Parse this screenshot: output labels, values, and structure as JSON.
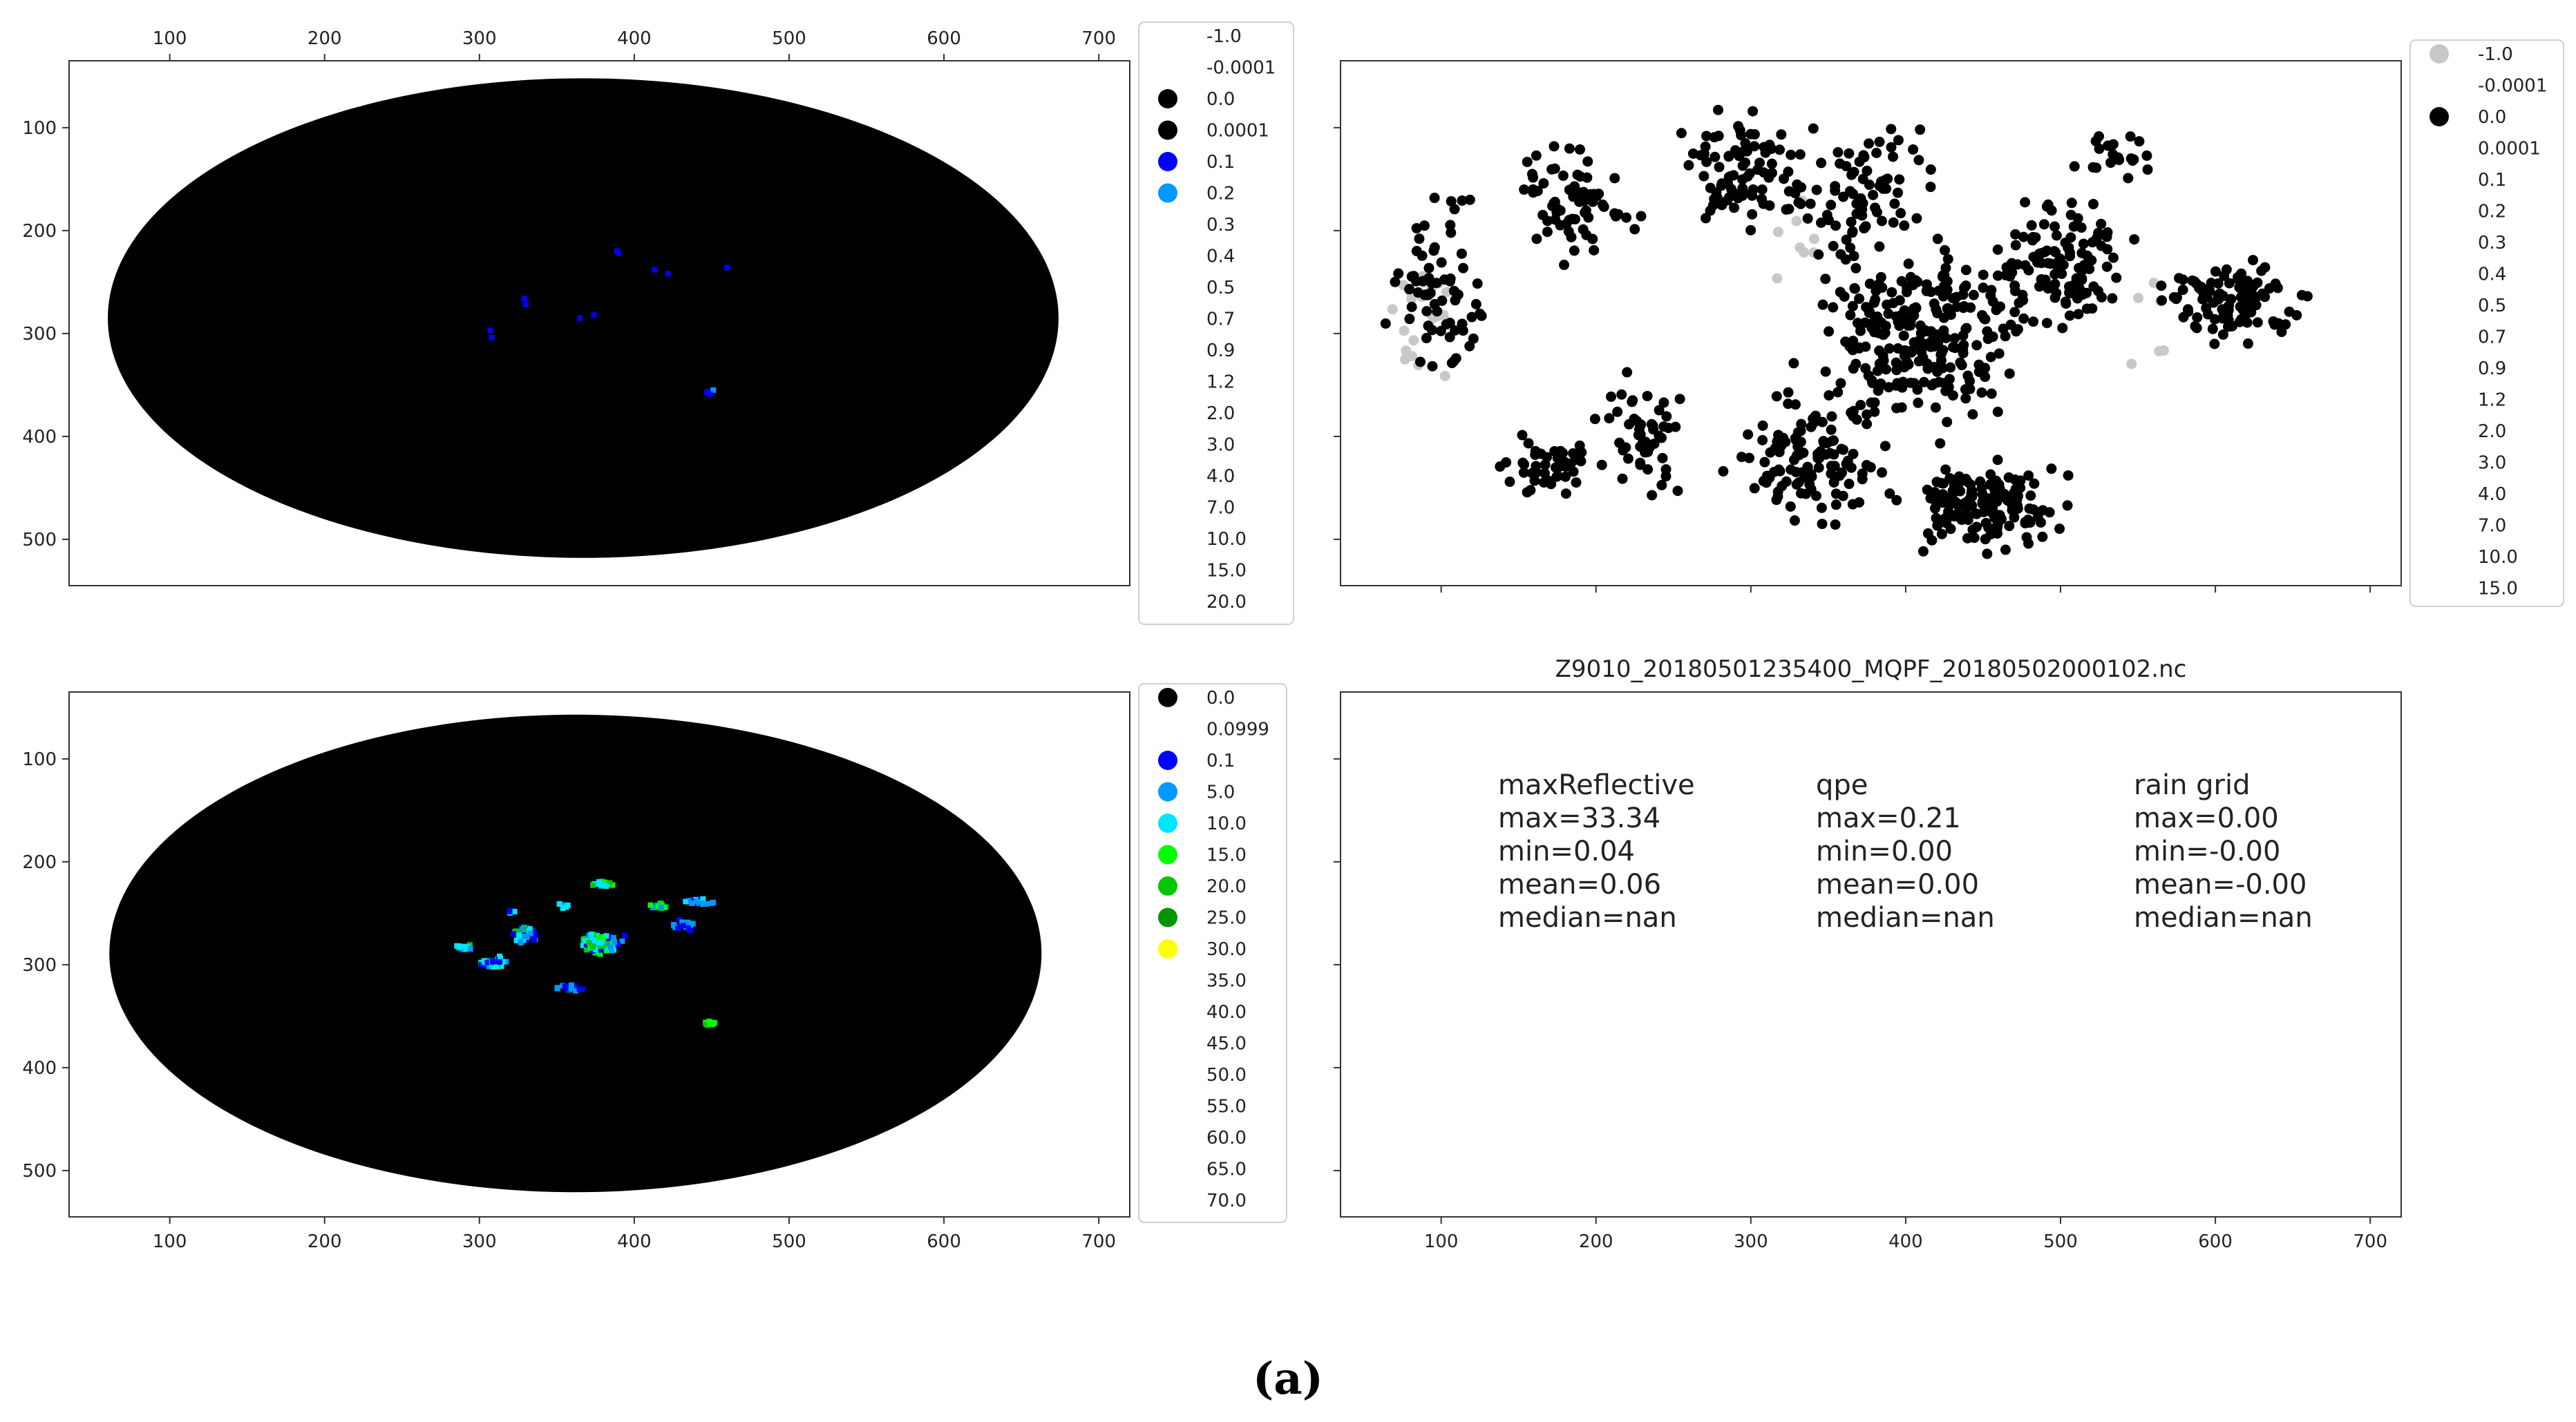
{
  "chart_data": [
    {
      "id": "maxReflective",
      "type": "heatmap",
      "x_ticks": [
        100,
        200,
        300,
        400,
        500,
        600,
        700
      ],
      "y_ticks": [
        100,
        200,
        300,
        400,
        500
      ],
      "xlim": [
        35,
        720
      ],
      "ylim": [
        545,
        35
      ],
      "x_axis_position": "top",
      "domain_ellipse": {
        "cx": 367,
        "cy": 285,
        "rx": 307,
        "ry": 233,
        "fill": "#000000"
      },
      "legend": [
        "-1.0",
        "-0.0001",
        "0.0",
        "0.0001",
        "0.1",
        "0.2",
        "0.3",
        "0.4",
        "0.5",
        "0.7",
        "0.9",
        "1.2",
        "2.0",
        "3.0",
        "4.0",
        "7.0",
        "10.0",
        "15.0",
        "20.0"
      ],
      "legend_colors": [
        "",
        "",
        "#000000",
        "#000000",
        "#0000ff",
        "#0099ff",
        "",
        "",
        "",
        "",
        "",
        "",
        "",
        "",
        "",
        "",
        "",
        "",
        ""
      ],
      "echo_points": [
        {
          "x": 389,
          "y": 220,
          "value": "0.1"
        },
        {
          "x": 390,
          "y": 222,
          "value": "0.1"
        },
        {
          "x": 413,
          "y": 238,
          "value": "0.1"
        },
        {
          "x": 422,
          "y": 242,
          "value": "0.1"
        },
        {
          "x": 460,
          "y": 236,
          "value": "0.1"
        },
        {
          "x": 329,
          "y": 266,
          "value": "0.1"
        },
        {
          "x": 330,
          "y": 272,
          "value": "0.1"
        },
        {
          "x": 307,
          "y": 297,
          "value": "0.1"
        },
        {
          "x": 308,
          "y": 304,
          "value": "0.1"
        },
        {
          "x": 365,
          "y": 285,
          "value": "0.1"
        },
        {
          "x": 374,
          "y": 282,
          "value": "0.1"
        },
        {
          "x": 447,
          "y": 357,
          "value": "0.1"
        },
        {
          "x": 451,
          "y": 355,
          "value": "0.2"
        },
        {
          "x": 449,
          "y": 359,
          "value": "0.1"
        }
      ]
    },
    {
      "id": "rain-grid",
      "type": "scatter",
      "x_ticks": [
        100,
        200,
        300,
        400,
        500,
        600,
        700
      ],
      "y_ticks": [
        100,
        200,
        300,
        400,
        500
      ],
      "xlim": [
        35,
        720
      ],
      "ylim": [
        545,
        35
      ],
      "legend": [
        "-1.0",
        "-0.0001",
        "0.0",
        "0.0001",
        "0.1",
        "0.2",
        "0.3",
        "0.4",
        "0.5",
        "0.7",
        "0.9",
        "1.2",
        "2.0",
        "3.0",
        "4.0",
        "7.0",
        "10.0",
        "15.0"
      ],
      "legend_colors": [
        "#c8c8c8",
        "",
        "#000000",
        "",
        "",
        "",
        "",
        "",
        "",
        "",
        "",
        "",
        "",
        "",
        "",
        "",
        "",
        ""
      ],
      "series": [
        {
          "name": "0.0",
          "color": "#000000",
          "clusters": [
            {
              "x": 60,
              "y": 260,
              "w": 3,
              "h": 1,
              "n": 8
            },
            {
              "x": 95,
              "y": 260,
              "w": 45,
              "h": 130,
              "n": 65
            },
            {
              "x": 185,
              "y": 170,
              "w": 55,
              "h": 75,
              "n": 70
            },
            {
              "x": 170,
              "y": 430,
              "w": 45,
              "h": 40,
              "n": 45
            },
            {
              "x": 230,
              "y": 400,
              "w": 40,
              "h": 80,
              "n": 50
            },
            {
              "x": 290,
              "y": 150,
              "w": 45,
              "h": 90,
              "n": 80
            },
            {
              "x": 370,
              "y": 160,
              "w": 60,
              "h": 80,
              "n": 80
            },
            {
              "x": 410,
              "y": 300,
              "w": 90,
              "h": 120,
              "n": 260
            },
            {
              "x": 340,
              "y": 420,
              "w": 70,
              "h": 80,
              "n": 120
            },
            {
              "x": 450,
              "y": 470,
              "w": 70,
              "h": 55,
              "n": 140
            },
            {
              "x": 500,
              "y": 230,
              "w": 60,
              "h": 90,
              "n": 110
            },
            {
              "x": 610,
              "y": 270,
              "w": 60,
              "h": 50,
              "n": 110
            },
            {
              "x": 540,
              "y": 130,
              "w": 40,
              "h": 30,
              "n": 20
            }
          ]
        },
        {
          "name": "-1.0",
          "color": "#c8c8c8",
          "clusters": [
            {
              "x": 85,
              "y": 280,
              "w": 30,
              "h": 80,
              "n": 22
            },
            {
              "x": 330,
              "y": 200,
              "w": 30,
              "h": 80,
              "n": 8
            },
            {
              "x": 560,
              "y": 300,
              "w": 20,
              "h": 130,
              "n": 6
            }
          ]
        }
      ]
    },
    {
      "id": "qpe",
      "type": "heatmap",
      "x_ticks": [
        100,
        200,
        300,
        400,
        500,
        600,
        700
      ],
      "y_ticks": [
        100,
        200,
        300,
        400,
        500
      ],
      "xlim": [
        35,
        720
      ],
      "ylim": [
        545,
        35
      ],
      "x_axis_position": "bottom",
      "domain_ellipse": {
        "cx": 362,
        "cy": 289,
        "rx": 301,
        "ry": 232,
        "fill": "#000000"
      },
      "legend": [
        "0.0",
        "0.0999",
        "0.1",
        "5.0",
        "10.0",
        "15.0",
        "20.0",
        "25.0",
        "30.0",
        "35.0",
        "40.0",
        "45.0",
        "50.0",
        "55.0",
        "60.0",
        "65.0",
        "70.0"
      ],
      "legend_colors": [
        "#000000",
        "",
        "#0000ff",
        "#0099ff",
        "#00e5ff",
        "#00ff00",
        "#00c800",
        "#009600",
        "#ffff00",
        "",
        "",
        "",
        "",
        "",
        "",
        "",
        ""
      ],
      "echo_clusters": [
        {
          "x": 378,
          "y": 280,
          "w": 18,
          "h": 14,
          "n": 110,
          "colors": [
            "#00e5ff",
            "#00e5ff",
            "#0099ff",
            "#0000ff",
            "#00ff00",
            "#00c800"
          ]
        },
        {
          "x": 330,
          "y": 270,
          "w": 12,
          "h": 10,
          "n": 45,
          "colors": [
            "#0099ff",
            "#00e5ff",
            "#00c800",
            "#0000ff"
          ]
        },
        {
          "x": 308,
          "y": 298,
          "w": 12,
          "h": 8,
          "n": 40,
          "colors": [
            "#0099ff",
            "#00e5ff",
            "#0000ff",
            "#00c800"
          ]
        },
        {
          "x": 290,
          "y": 283,
          "w": 6,
          "h": 5,
          "n": 14,
          "colors": [
            "#00e5ff",
            "#00c800",
            "#0099ff"
          ]
        },
        {
          "x": 380,
          "y": 221,
          "w": 8,
          "h": 4,
          "n": 18,
          "colors": [
            "#00e5ff",
            "#00ff00",
            "#00c800"
          ]
        },
        {
          "x": 354,
          "y": 243,
          "w": 4,
          "h": 3,
          "n": 6,
          "colors": [
            "#00e5ff",
            "#0099ff"
          ]
        },
        {
          "x": 416,
          "y": 243,
          "w": 8,
          "h": 4,
          "n": 16,
          "colors": [
            "#00ff00",
            "#00c800",
            "#0099ff"
          ]
        },
        {
          "x": 442,
          "y": 238,
          "w": 16,
          "h": 4,
          "n": 24,
          "colors": [
            "#00e5ff",
            "#0099ff",
            "#0000ff"
          ]
        },
        {
          "x": 432,
          "y": 262,
          "w": 12,
          "h": 12,
          "n": 14,
          "colors": [
            "#0000ff",
            "#0099ff"
          ]
        },
        {
          "x": 358,
          "y": 322,
          "w": 14,
          "h": 6,
          "n": 14,
          "colors": [
            "#0000ff",
            "#0099ff"
          ]
        },
        {
          "x": 449,
          "y": 357,
          "w": 5,
          "h": 4,
          "n": 14,
          "colors": [
            "#00ff00",
            "#00c800",
            "#ffff00"
          ]
        },
        {
          "x": 320,
          "y": 248,
          "w": 4,
          "h": 4,
          "n": 5,
          "colors": [
            "#0000ff",
            "#00e5ff"
          ]
        }
      ]
    },
    {
      "id": "stats-text",
      "type": "table",
      "title": "Z9010_20180501235400_MQPF_20180502000102.nc",
      "x_ticks": [
        100,
        200,
        300,
        400,
        500,
        600,
        700
      ],
      "xlim": [
        35,
        720
      ],
      "columns": [
        {
          "name": "maxReflective",
          "lines": [
            "max=33.34",
            "min=0.04",
            "mean=0.06",
            "median=nan"
          ]
        },
        {
          "name": "qpe",
          "lines": [
            "max=0.21",
            "min=0.00",
            "mean=0.00",
            "median=nan"
          ]
        },
        {
          "name": "rain grid",
          "lines": [
            "max=0.00",
            "min=-0.00",
            "mean=-0.00",
            "median=nan"
          ]
        }
      ]
    }
  ],
  "caption": "(a)"
}
